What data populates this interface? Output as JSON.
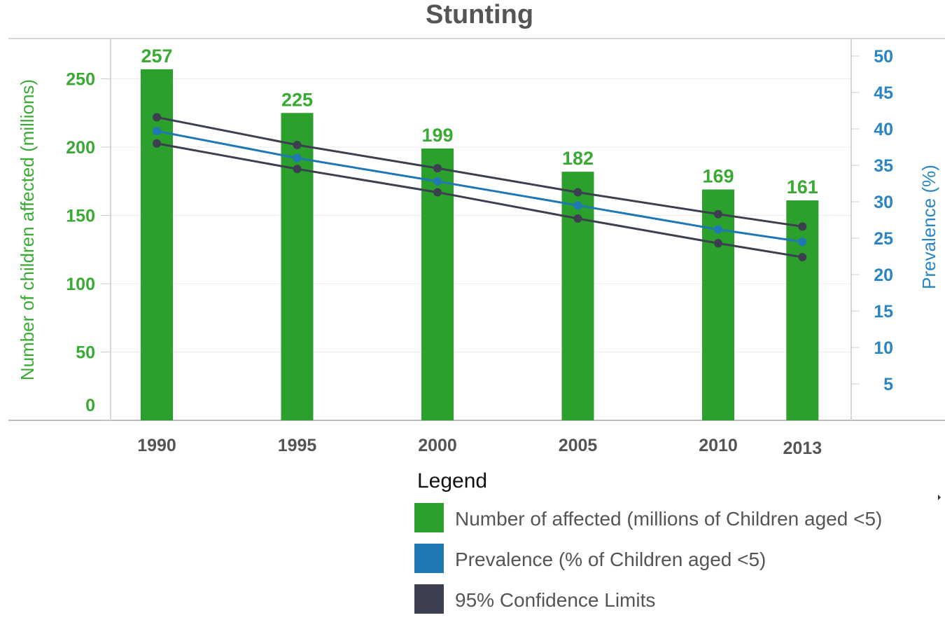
{
  "chart_data": {
    "type": "bar",
    "title": "Stunting",
    "categories": [
      "1990",
      "1995",
      "2000",
      "2005",
      "2010",
      "2013"
    ],
    "x": [
      1990,
      1995,
      2000,
      2005,
      2010,
      2013
    ],
    "ylabel": "Number of children affected (millions)",
    "ylim": [
      0,
      280
    ],
    "yticks": [
      0,
      50,
      100,
      150,
      200,
      250
    ],
    "y2label": "Prevalence (%)",
    "y2lim": [
      0,
      53
    ],
    "y2ticks": [
      5,
      10,
      15,
      20,
      25,
      30,
      35,
      40,
      45,
      50
    ],
    "grid": true,
    "series": [
      {
        "name": "Number of affected (millions of Children aged <5)",
        "type": "bar",
        "axis": "left",
        "color": "#2ca02c",
        "values": [
          257,
          225,
          199,
          182,
          169,
          161
        ]
      },
      {
        "name": "Prevalence (% of Children aged <5)",
        "type": "line",
        "axis": "right",
        "color": "#1f77b4",
        "values": [
          39.7,
          36.0,
          32.8,
          29.5,
          26.2,
          24.5
        ]
      },
      {
        "name": "95% Confidence Limits",
        "type": "line",
        "axis": "right",
        "color": "#3c3f4f",
        "upper": [
          41.6,
          37.8,
          34.6,
          31.3,
          28.3,
          26.6
        ],
        "lower": [
          38.0,
          34.5,
          31.3,
          27.7,
          24.3,
          22.4
        ]
      }
    ],
    "legend": {
      "title": "Legend",
      "position": "bottom-right",
      "items": [
        {
          "label": "Number of affected (millions of Children aged <5)",
          "color": "#2ca02c"
        },
        {
          "label": "Prevalence (% of Children aged <5)",
          "color": "#1f77b4"
        },
        {
          "label": "95% Confidence Limits",
          "color": "#3c3f4f"
        }
      ]
    }
  }
}
